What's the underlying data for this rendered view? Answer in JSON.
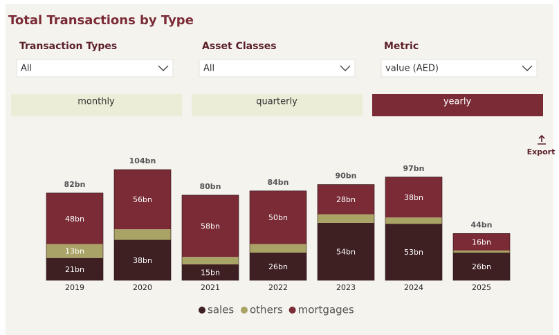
{
  "header": {
    "title": "Total Transactions by Type"
  },
  "filters": [
    {
      "label": "Transaction Types",
      "value": "All"
    },
    {
      "label": "Asset Classes",
      "value": "All"
    },
    {
      "label": "Metric",
      "value": "value (AED)"
    }
  ],
  "buttons": [
    "monthly",
    "quarterly",
    "yearly"
  ],
  "active_button": "yearly",
  "export": "Export",
  "chart_data": {
    "type": "stacked-bar",
    "categories": [
      "2019",
      "2020",
      "2021",
      "2022",
      "2023",
      "2024",
      "2025"
    ],
    "series": [
      {
        "name": "sales",
        "color": "#3e1f22",
        "values": [
          21,
          38,
          15,
          26,
          54,
          53,
          26
        ],
        "value_labels": [
          "21bn",
          "38bn",
          "15bn",
          "26bn",
          "54bn",
          "53bn",
          "26bn"
        ]
      },
      {
        "name": "others",
        "color": "#aaa366",
        "values": [
          13,
          10,
          7,
          8,
          8,
          6,
          2
        ],
        "value_labels": [
          "13bn",
          null,
          null,
          null,
          null,
          null,
          null
        ]
      },
      {
        "name": "mortgages",
        "color": "#7a2b36",
        "values": [
          48,
          56,
          58,
          50,
          28,
          38,
          16
        ],
        "value_labels": [
          "48bn",
          "56bn",
          "58bn",
          "50bn",
          "28bn",
          "38bn",
          "16bn"
        ]
      }
    ],
    "totals": {
      "values": [
        82,
        104,
        80,
        84,
        90,
        97,
        44
      ],
      "value_labels": [
        "82bn",
        "104bn",
        "80bn",
        "84bn",
        "90bn",
        "97bn",
        "44bn"
      ]
    },
    "legend": "bottom"
  }
}
